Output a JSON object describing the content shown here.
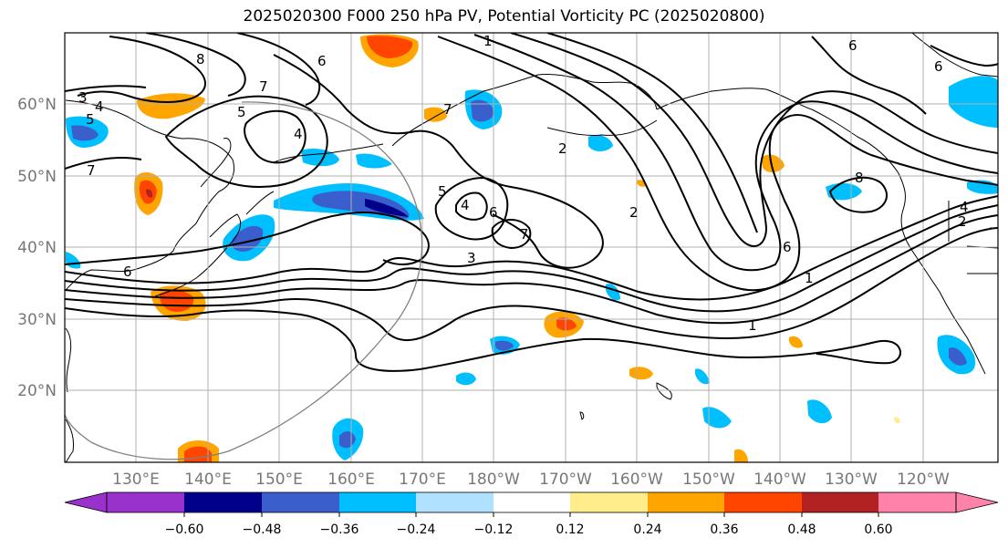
{
  "title": "2025020300 F000 250 hPa PV, Potential Vorticity PC (2025020800)",
  "lat_labels": [
    "60°N",
    "50°N",
    "40°N",
    "30°N",
    "20°N"
  ],
  "lon_labels": [
    "130°E",
    "140°E",
    "150°E",
    "160°E",
    "170°E",
    "180°W",
    "170°W",
    "160°W",
    "150°W",
    "140°W",
    "130°W",
    "120°W"
  ],
  "colorbar": {
    "colors": [
      "#9932cc",
      "#00008b",
      "#3a5fcd",
      "#00bfff",
      "#b0e2ff",
      "#ffffff",
      "#ffec8b",
      "#ffa500",
      "#ff4500",
      "#b22222",
      "#ff82ab"
    ],
    "ticks": [
      "−0.60",
      "−0.48",
      "−0.36",
      "−0.24",
      "−0.12",
      "0.12",
      "0.24",
      "0.36",
      "0.48",
      "0.60"
    ]
  },
  "contour_labels": [
    "8",
    "6",
    "7",
    "3",
    "4",
    "5",
    "7",
    "5",
    "4",
    "1",
    "5",
    "7",
    "4",
    "6",
    "7",
    "2",
    "2",
    "3",
    "6",
    "1",
    "8",
    "6",
    "6",
    "4",
    "2",
    "6",
    "1"
  ]
}
